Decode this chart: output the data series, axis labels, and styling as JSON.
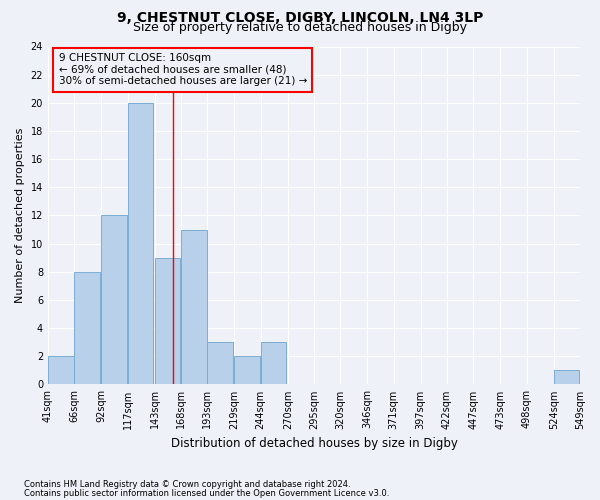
{
  "title1": "9, CHESTNUT CLOSE, DIGBY, LINCOLN, LN4 3LP",
  "title2": "Size of property relative to detached houses in Digby",
  "xlabel": "Distribution of detached houses by size in Digby",
  "ylabel": "Number of detached properties",
  "bins_left": [
    41,
    66,
    92,
    117,
    143,
    168,
    193,
    219,
    244,
    270,
    295,
    320,
    346,
    371,
    397,
    422,
    447,
    473,
    498,
    524
  ],
  "bin_width": 25,
  "counts": [
    2,
    8,
    12,
    20,
    9,
    11,
    3,
    2,
    3,
    0,
    0,
    0,
    0,
    0,
    0,
    0,
    0,
    0,
    0,
    1
  ],
  "tick_labels": [
    "41sqm",
    "66sqm",
    "92sqm",
    "117sqm",
    "143sqm",
    "168sqm",
    "193sqm",
    "219sqm",
    "244sqm",
    "270sqm",
    "295sqm",
    "320sqm",
    "346sqm",
    "371sqm",
    "397sqm",
    "422sqm",
    "447sqm",
    "473sqm",
    "498sqm",
    "524sqm",
    "549sqm"
  ],
  "bar_color": "#b8d0ea",
  "bar_edge_color": "#7aadd4",
  "red_line_x": 160,
  "ylim": [
    0,
    24
  ],
  "yticks": [
    0,
    2,
    4,
    6,
    8,
    10,
    12,
    14,
    16,
    18,
    20,
    22,
    24
  ],
  "annotation_line1": "9 CHESTNUT CLOSE: 160sqm",
  "annotation_line2": "← 69% of detached houses are smaller (48)",
  "annotation_line3": "30% of semi-detached houses are larger (21) →",
  "footer1": "Contains HM Land Registry data © Crown copyright and database right 2024.",
  "footer2": "Contains public sector information licensed under the Open Government Licence v3.0.",
  "background_color": "#eef2f8",
  "grid_color": "#ffffff",
  "title1_fontsize": 10,
  "title2_fontsize": 9,
  "xlabel_fontsize": 8.5,
  "ylabel_fontsize": 8,
  "tick_fontsize": 7,
  "annot_fontsize": 7.5,
  "footer_fontsize": 6
}
